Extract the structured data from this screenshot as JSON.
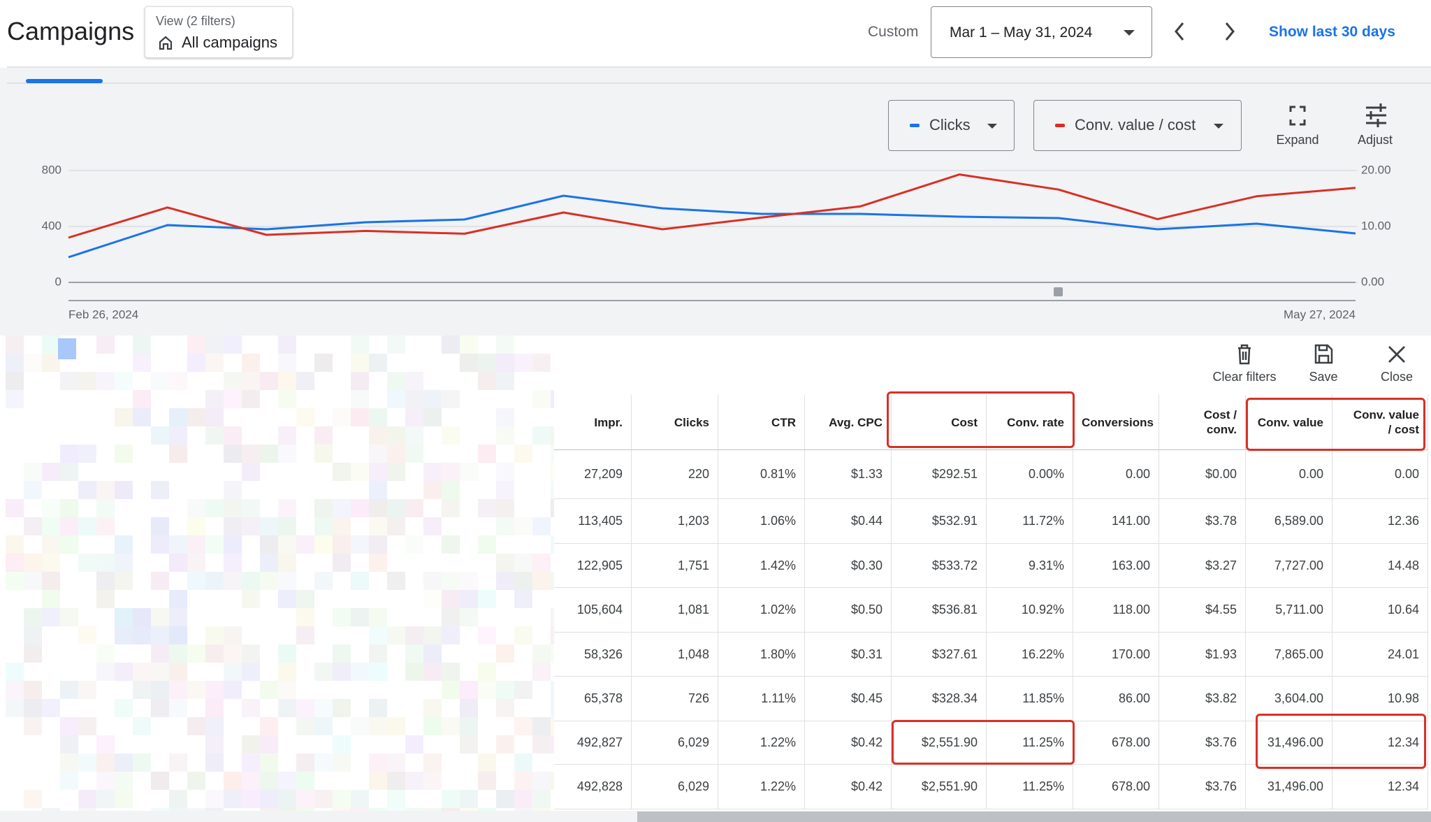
{
  "header": {
    "title": "Campaigns",
    "view_label": "View (2 filters)",
    "view_value": "All campaigns",
    "date_label": "Custom",
    "date_range": "Mar 1 – May 31, 2024",
    "show_last": "Show last 30 days"
  },
  "chart_controls": {
    "expand": "Expand",
    "adjust": "Adjust"
  },
  "chart_data": {
    "type": "line",
    "categories": [
      "Feb 26, 2024",
      null,
      null,
      null,
      null,
      null,
      null,
      null,
      null,
      null,
      null,
      null,
      null,
      "May 27, 2024"
    ],
    "series": [
      {
        "name": "Clicks",
        "color": "#1a73e8",
        "values": [
          180,
          410,
          380,
          430,
          450,
          620,
          530,
          490,
          490,
          470,
          460,
          380,
          420,
          350
        ]
      },
      {
        "name": "Conv. value / cost",
        "color": "#d93025",
        "axis": "y2",
        "values": [
          8.0,
          13.4,
          8.5,
          9.2,
          8.7,
          12.5,
          9.5,
          11.6,
          13.6,
          19.3,
          16.6,
          11.3,
          15.4,
          16.9
        ]
      }
    ],
    "ylim": [
      0,
      800
    ],
    "yticks": [
      0,
      400,
      800
    ],
    "y2lim": [
      0,
      20
    ],
    "y2ticks": [
      {
        "value": 0,
        "label": "0.00"
      },
      {
        "value": 10,
        "label": "10.00"
      },
      {
        "value": 20,
        "label": "20.00"
      }
    ],
    "grid": true
  },
  "table_toolbar": {
    "clear_filters": "Clear filters",
    "save": "Save",
    "close": "Close"
  },
  "table": {
    "columns": [
      "Impr.",
      "Clicks",
      "CTR",
      "Avg. CPC",
      "Cost",
      "Conv. rate",
      "Conversions",
      "Cost / conv.",
      "Conv. value",
      "Conv. value / cost"
    ],
    "rows": [
      [
        "27,209",
        "220",
        "0.81%",
        "$1.33",
        "$292.51",
        "0.00%",
        "0.00",
        "$0.00",
        "0.00",
        "0.00"
      ],
      [
        "113,405",
        "1,203",
        "1.06%",
        "$0.44",
        "$532.91",
        "11.72%",
        "141.00",
        "$3.78",
        "6,589.00",
        "12.36"
      ],
      [
        "122,905",
        "1,751",
        "1.42%",
        "$0.30",
        "$533.72",
        "9.31%",
        "163.00",
        "$3.27",
        "7,727.00",
        "14.48"
      ],
      [
        "105,604",
        "1,081",
        "1.02%",
        "$0.50",
        "$536.81",
        "10.92%",
        "118.00",
        "$4.55",
        "5,711.00",
        "10.64"
      ],
      [
        "58,326",
        "1,048",
        "1.80%",
        "$0.31",
        "$327.61",
        "16.22%",
        "170.00",
        "$1.93",
        "7,865.00",
        "24.01"
      ],
      [
        "65,378",
        "726",
        "1.11%",
        "$0.45",
        "$328.34",
        "11.85%",
        "86.00",
        "$3.82",
        "3,604.00",
        "10.98"
      ],
      [
        "492,827",
        "6,029",
        "1.22%",
        "$0.42",
        "$2,551.90",
        "11.25%",
        "678.00",
        "$3.76",
        "31,496.00",
        "12.34"
      ],
      [
        "492,828",
        "6,029",
        "1.22%",
        "$0.42",
        "$2,551.90",
        "11.25%",
        "678.00",
        "$3.76",
        "31,496.00",
        "12.34"
      ]
    ]
  }
}
